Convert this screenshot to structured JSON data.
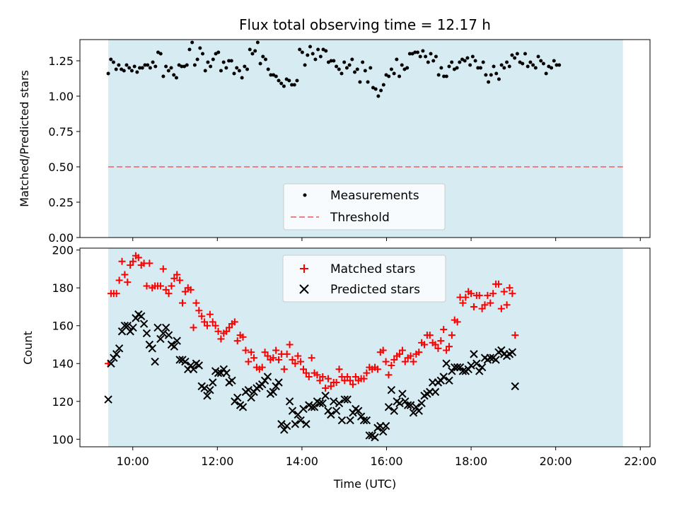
{
  "chart_data": {
    "type": "scatter",
    "title": "Flux total observing time = 12.17 h",
    "xlabel": "Time (UTC)",
    "x_ticks": [
      "10:00",
      "12:00",
      "14:00",
      "16:00",
      "18:00",
      "20:00",
      "22:00"
    ],
    "x_tick_hours": [
      10,
      12,
      14,
      16,
      18,
      20,
      22
    ],
    "xlim_hours": [
      8.75,
      22.23
    ],
    "observing_window_hours": [
      9.42,
      21.59
    ],
    "shade_color": "#add8e6",
    "panels": [
      {
        "id": "ratio",
        "ylabel": "Matched/Predicted stars",
        "ylim": [
          0.0,
          1.4
        ],
        "y_ticks": [
          0.0,
          0.25,
          0.5,
          0.75,
          1.0,
          1.25
        ],
        "y_tick_labels": [
          "0.00",
          "0.25",
          "0.50",
          "0.75",
          "1.00",
          "1.25"
        ],
        "legend": [
          "Measurements",
          "Threshold"
        ],
        "threshold": {
          "name": "Threshold",
          "value": 0.5,
          "color": "#f08080"
        },
        "series": [
          {
            "name": "Measurements",
            "marker": "dot",
            "color": "#000000",
            "x_start": 9.42,
            "x_step": 0.062,
            "values": [
              1.16,
              1.26,
              1.24,
              1.19,
              1.22,
              1.19,
              1.18,
              1.22,
              1.2,
              1.18,
              1.21,
              1.17,
              1.2,
              1.2,
              1.22,
              1.22,
              1.2,
              1.24,
              1.21,
              1.31,
              1.3,
              1.14,
              1.21,
              1.18,
              1.2,
              1.15,
              1.13,
              1.22,
              1.21,
              1.21,
              1.22,
              1.33,
              1.38,
              1.22,
              1.26,
              1.34,
              1.3,
              1.18,
              1.24,
              1.21,
              1.26,
              1.3,
              1.31,
              1.18,
              1.24,
              1.2,
              1.25,
              1.25,
              1.16,
              1.2,
              1.18,
              1.13,
              1.21,
              1.19,
              1.33,
              1.3,
              1.32,
              1.38,
              1.23,
              1.28,
              1.26,
              1.19,
              1.15,
              1.15,
              1.14,
              1.11,
              1.09,
              1.07,
              1.12,
              1.11,
              1.08,
              1.08,
              1.11,
              1.33,
              1.31,
              1.22,
              1.29,
              1.35,
              1.3,
              1.26,
              1.33,
              1.28,
              1.33,
              1.32,
              1.24,
              1.25,
              1.25,
              1.21,
              1.19,
              1.16,
              1.24,
              1.2,
              1.22,
              1.26,
              1.17,
              1.19,
              1.1,
              1.24,
              1.18,
              1.1,
              1.2,
              1.06,
              1.05,
              1.0,
              1.04,
              1.08,
              1.15,
              1.14,
              1.19,
              1.16,
              1.26,
              1.14,
              1.22,
              1.19,
              1.2,
              1.3,
              1.3,
              1.31,
              1.31,
              1.28,
              1.32,
              1.28,
              1.24,
              1.3,
              1.25,
              1.28,
              1.15,
              1.2,
              1.14,
              1.14,
              1.21,
              1.24,
              1.19,
              1.2,
              1.24,
              1.26,
              1.25,
              1.27,
              1.22,
              1.28,
              1.25,
              1.2,
              1.2,
              1.24,
              1.15,
              1.1,
              1.15,
              1.21,
              1.16,
              1.12,
              1.22,
              1.2,
              1.24,
              1.21,
              1.29,
              1.27,
              1.3,
              1.24,
              1.23,
              1.3,
              1.21,
              1.24,
              1.22,
              1.2,
              1.28,
              1.25,
              1.23,
              1.16,
              1.21,
              1.2,
              1.25,
              1.22,
              1.22
            ]
          }
        ]
      },
      {
        "id": "count",
        "ylabel": "Count",
        "ylim": [
          96,
          201
        ],
        "y_ticks": [
          100,
          120,
          140,
          160,
          180,
          200
        ],
        "y_tick_labels": [
          "100",
          "120",
          "140",
          "160",
          "180",
          "200"
        ],
        "legend": [
          "Matched stars",
          "Predicted stars"
        ],
        "series": [
          {
            "name": "Matched stars",
            "marker": "plus",
            "color": "#ff0000",
            "x_start": 9.42,
            "x_step": 0.065,
            "values": [
              140,
              177,
              177,
              177,
              184,
              194,
              187,
              183,
              192,
              194,
              197,
              196,
              192,
              193,
              181,
              193,
              180,
              181,
              181,
              181,
              190,
              179,
              177,
              181,
              185,
              187,
              184,
              172,
              178,
              180,
              179,
              159,
              172,
              168,
              165,
              162,
              160,
              166,
              162,
              160,
              157,
              153,
              156,
              157,
              159,
              161,
              162,
              152,
              155,
              154,
              147,
              141,
              146,
              143,
              138,
              137,
              138,
              146,
              144,
              142,
              143,
              147,
              142,
              145,
              137,
              145,
              150,
              142,
              140,
              144,
              141,
              137,
              135,
              133,
              143,
              135,
              134,
              131,
              133,
              127,
              132,
              128,
              130,
              130,
              137,
              133,
              131,
              133,
              131,
              129,
              133,
              131,
              132,
              132,
              135,
              138,
              137,
              138,
              137,
              146,
              147,
              141,
              134,
              139,
              142,
              144,
              145,
              147,
              141,
              143,
              144,
              141,
              145,
              146,
              151,
              150,
              155,
              155,
              151,
              150,
              148,
              152,
              158,
              147,
              149,
              155,
              163,
              162,
              175,
              172,
              175,
              178,
              177,
              170,
              176,
              176,
              169,
              171,
              176,
              172,
              177,
              182,
              182,
              169,
              178,
              171,
              180,
              177,
              155
            ]
          },
          {
            "name": "Predicted stars",
            "marker": "x",
            "color": "#000000",
            "x_start": 9.42,
            "x_step": 0.065,
            "values": [
              121,
              140,
              143,
              145,
              148,
              157,
              160,
              160,
              157,
              159,
              164,
              166,
              165,
              161,
              156,
              150,
              148,
              141,
              159,
              153,
              156,
              159,
              155,
              150,
              149,
              152,
              142,
              142,
              141,
              137,
              139,
              137,
              140,
              139,
              128,
              127,
              123,
              126,
              130,
              136,
              135,
              135,
              137,
              135,
              130,
              131,
              120,
              122,
              118,
              117,
              125,
              126,
              122,
              125,
              127,
              128,
              129,
              131,
              133,
              124,
              125,
              128,
              130,
              108,
              105,
              107,
              120,
              115,
              108,
              113,
              110,
              116,
              108,
              118,
              117,
              117,
              120,
              119,
              119,
              123,
              115,
              113,
              120,
              115,
              119,
              110,
              121,
              121,
              110,
              114,
              116,
              115,
              112,
              110,
              110,
              102,
              102,
              101,
              106,
              107,
              104,
              107,
              117,
              126,
              115,
              120,
              119,
              124,
              120,
              118,
              118,
              114,
              117,
              115,
              119,
              123,
              124,
              125,
              130,
              125,
              130,
              131,
              133,
              140,
              131,
              136,
              138,
              138,
              138,
              136,
              136,
              137,
              139,
              145,
              140,
              136,
              138,
              143,
              142,
              143,
              143,
              142,
              146,
              147,
              145,
              144,
              145,
              146,
              128
            ]
          }
        ]
      }
    ]
  }
}
